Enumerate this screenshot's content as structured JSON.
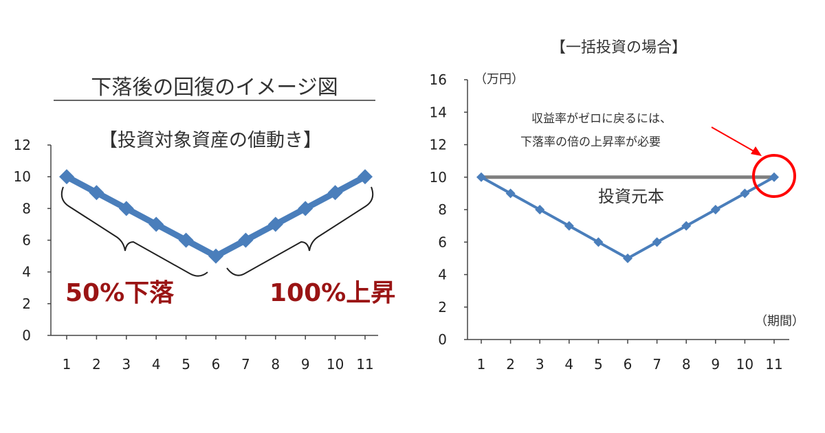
{
  "left_panel": {
    "heading": "下落後の回復のイメージ図",
    "subtitle": "【投資対象資産の値動き】",
    "label_decline": "50%下落",
    "label_rise": "100%上昇"
  },
  "right_panel": {
    "title": "【一括投資の場合】",
    "y_unit": "（万円）",
    "x_unit": "（期間）",
    "annotation_line1": "収益率がゼロに戻るには、",
    "annotation_line2": "下落率の倍の上昇率が必要",
    "baseline_label": "投資元本"
  },
  "colors": {
    "series": "#4a7ebb",
    "baseline": "#7f7f7f",
    "highlight": "#ff0000",
    "emphasis_text": "#9a1414"
  },
  "chart_data": [
    {
      "type": "line",
      "title": "【投資対象資産の値動き】",
      "x": [
        1,
        2,
        3,
        4,
        5,
        6,
        7,
        8,
        9,
        10,
        11
      ],
      "series": [
        {
          "values": [
            10,
            9,
            8,
            7,
            6,
            5,
            6,
            7,
            8,
            9,
            10
          ]
        }
      ],
      "ylim": [
        0,
        12
      ],
      "yticks": [
        0,
        2,
        4,
        6,
        8,
        10,
        12
      ],
      "grid": false,
      "annotations": [
        "50%下落",
        "100%上昇"
      ]
    },
    {
      "type": "line",
      "title": "【一括投資の場合】",
      "x": [
        1,
        2,
        3,
        4,
        5,
        6,
        7,
        8,
        9,
        10,
        11
      ],
      "series": [
        {
          "values": [
            10,
            9,
            8,
            7,
            6,
            5,
            6,
            7,
            8,
            9,
            10
          ]
        },
        {
          "name": "投資元本",
          "values": [
            10,
            10,
            10,
            10,
            10,
            10,
            10,
            10,
            10,
            10,
            10
          ]
        }
      ],
      "ylim": [
        0,
        16
      ],
      "yticks": [
        0,
        2,
        4,
        6,
        8,
        10,
        12,
        14,
        16
      ],
      "xlabel": "（期間）",
      "ylabel": "（万円）",
      "grid": false,
      "annotations": [
        "収益率がゼロに戻るには、",
        "下落率の倍の上昇率が必要"
      ]
    }
  ]
}
